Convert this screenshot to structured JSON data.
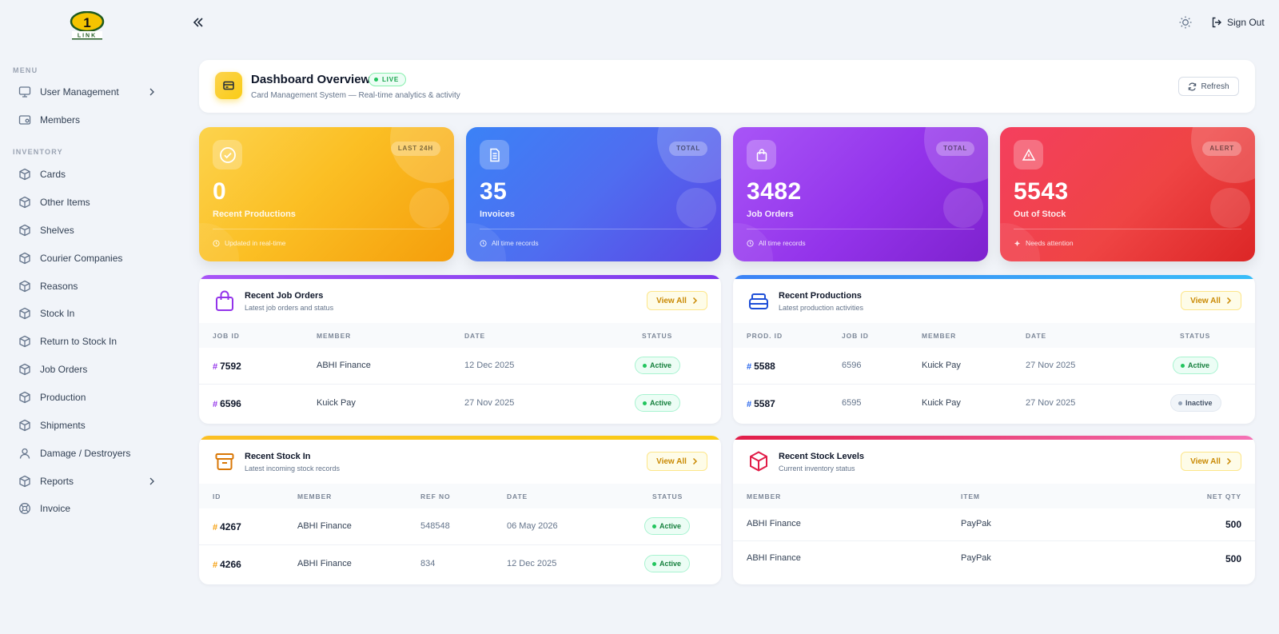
{
  "sidebar": {
    "logo_text": "1 LINK",
    "sections": {
      "menu": "MENU",
      "inventory": "INVENTORY"
    },
    "items": [
      {
        "label": "User Management",
        "icon": "monitor-icon",
        "has_children": true
      },
      {
        "label": "Members",
        "icon": "id-card-icon"
      },
      {
        "label": "Cards",
        "icon": "box-icon"
      },
      {
        "label": "Other Items",
        "icon": "box-icon"
      },
      {
        "label": "Shelves",
        "icon": "box-icon"
      },
      {
        "label": "Courier Companies",
        "icon": "box-icon"
      },
      {
        "label": "Reasons",
        "icon": "box-icon"
      },
      {
        "label": "Stock In",
        "icon": "box-icon"
      },
      {
        "label": "Return to Stock In",
        "icon": "box-icon"
      },
      {
        "label": "Job Orders",
        "icon": "box-icon"
      },
      {
        "label": "Production",
        "icon": "box-icon"
      },
      {
        "label": "Shipments",
        "icon": "box-icon"
      },
      {
        "label": "Damage / Destroyers",
        "icon": "user-icon"
      },
      {
        "label": "Reports",
        "icon": "box-icon",
        "has_children": true
      },
      {
        "label": "Invoice",
        "icon": "lifebuoy-icon"
      }
    ]
  },
  "topbar": {
    "sign_out": "Sign Out"
  },
  "header": {
    "title": "Dashboard Overview",
    "live": "LIVE",
    "subtitle": "Card Management System — Real-time analytics & activity",
    "refresh": "Refresh"
  },
  "stats": [
    {
      "tag": "LAST 24H",
      "value": "0",
      "label": "Recent Productions",
      "foot": "Updated in real-time",
      "color": "#fbbf24"
    },
    {
      "tag": "TOTAL",
      "value": "35",
      "label": "Invoices",
      "foot": "All time records",
      "color": "#3b82f6"
    },
    {
      "tag": "TOTAL",
      "value": "3482",
      "label": "Job Orders",
      "foot": "All time records",
      "color": "#9333ea"
    },
    {
      "tag": "ALERT",
      "value": "5543",
      "label": "Out of Stock",
      "foot": "Needs attention",
      "color": "#ef4444"
    }
  ],
  "panels": {
    "job_orders": {
      "title": "Recent Job Orders",
      "subtitle": "Latest job orders and status",
      "view_all": "View All",
      "columns": [
        "JOB ID",
        "MEMBER",
        "DATE",
        "STATUS"
      ],
      "rows": [
        {
          "id": "7592",
          "member": "ABHI Finance",
          "date": "12 Dec 2025",
          "status": "Active"
        },
        {
          "id": "6596",
          "member": "Kuick Pay",
          "date": "27 Nov 2025",
          "status": "Active"
        }
      ]
    },
    "productions": {
      "title": "Recent Productions",
      "subtitle": "Latest production activities",
      "view_all": "View All",
      "columns": [
        "PROD. ID",
        "JOB ID",
        "MEMBER",
        "DATE",
        "STATUS"
      ],
      "rows": [
        {
          "id": "5588",
          "job_id": "6596",
          "member": "Kuick Pay",
          "date": "27 Nov 2025",
          "status": "Active"
        },
        {
          "id": "5587",
          "job_id": "6595",
          "member": "Kuick Pay",
          "date": "27 Nov 2025",
          "status": "Inactive"
        }
      ]
    },
    "stock_in": {
      "title": "Recent Stock In",
      "subtitle": "Latest incoming stock records",
      "view_all": "View All",
      "columns": [
        "ID",
        "MEMBER",
        "REF NO",
        "DATE",
        "STATUS"
      ],
      "rows": [
        {
          "id": "4267",
          "member": "ABHI Finance",
          "ref": "548548",
          "date": "06 May 2026",
          "status": "Active"
        },
        {
          "id": "4266",
          "member": "ABHI Finance",
          "ref": "834",
          "date": "12 Dec 2025",
          "status": "Active"
        }
      ]
    },
    "stock_levels": {
      "title": "Recent Stock Levels",
      "subtitle": "Current inventory status",
      "view_all": "View All",
      "columns": [
        "MEMBER",
        "ITEM",
        "NET QTY"
      ],
      "rows": [
        {
          "member": "ABHI Finance",
          "item": "PayPak",
          "qty": "500"
        },
        {
          "member": "ABHI Finance",
          "item": "PayPak",
          "qty": "500"
        }
      ]
    }
  }
}
